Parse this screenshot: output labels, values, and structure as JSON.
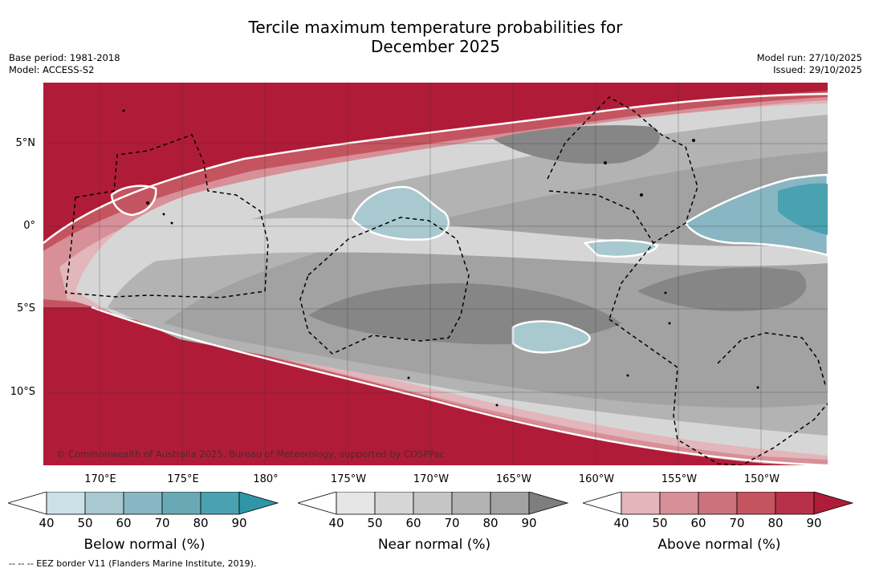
{
  "title_line1": "Tercile maximum temperature probabilities for",
  "title_line2": "December 2025",
  "meta": {
    "base_period": "Base period: 1981-2018",
    "model": "Model: ACCESS-S2",
    "model_run": "Model run: 27/10/2025",
    "issued": "Issued: 29/10/2025"
  },
  "axes": {
    "lat_labels": [
      "5°N",
      "0°",
      "5°S",
      "10°S"
    ],
    "lon_labels": [
      "170°E",
      "175°E",
      "180°",
      "175°W",
      "170°W",
      "165°W",
      "160°W",
      "155°W",
      "150°W"
    ]
  },
  "colorbars": [
    {
      "label": "Below normal (%)",
      "ticks": [
        "40",
        "50",
        "60",
        "70",
        "80",
        "90"
      ],
      "colors": [
        "#c9e1e7",
        "#a7c9cf",
        "#88b6c2",
        "#69a9b5",
        "#4aa1b0",
        "#2f96a8"
      ]
    },
    {
      "label": "Near normal (%)",
      "ticks": [
        "40",
        "50",
        "60",
        "70",
        "80",
        "90"
      ],
      "colors": [
        "#e6e6e6",
        "#d6d6d6",
        "#c5c5c5",
        "#b3b3b3",
        "#a2a2a2",
        "#7e7e7e"
      ]
    },
    {
      "label": "Above normal (%)",
      "ticks": [
        "40",
        "50",
        "60",
        "70",
        "80",
        "90"
      ],
      "colors": [
        "#e2b6bb",
        "#d78f98",
        "#cc727c",
        "#c4545f",
        "#b8314a",
        "#b01c38"
      ]
    }
  ],
  "copyright": "© Commonwealth of Australia 2025, Bureau of Meteorology, supported by COSPPac",
  "footnote": "-- -- -- EEZ border V11 (Flanders Marine Institute, 2019).",
  "map_colors": {
    "red_dark": "#b01c38",
    "red_mid": "#c4545f",
    "red_light": "#d78f98",
    "red_pale": "#e2b6bb",
    "grey_light": "#d6d6d6",
    "grey_mid": "#b3b3b3",
    "grey_dark": "#a2a2a2",
    "grey_darkest": "#868686",
    "blue_light": "#a7c9cf",
    "blue_dark": "#4aa1b0"
  }
}
